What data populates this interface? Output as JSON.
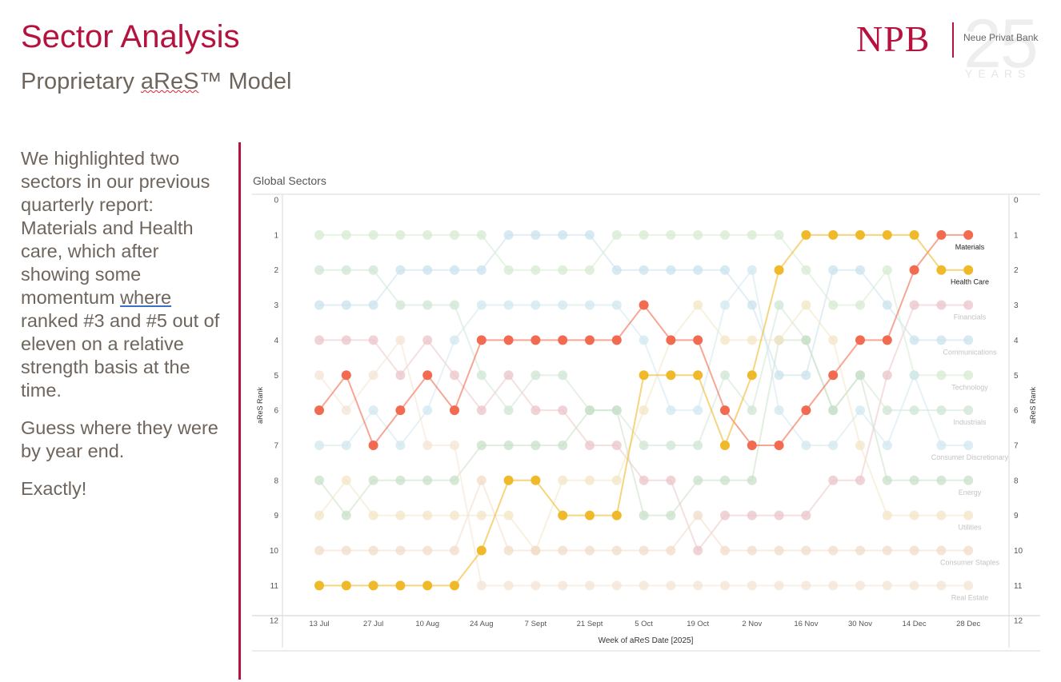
{
  "header": {
    "title": "Sector Analysis",
    "subtitle_pre": "Proprietary ",
    "subtitle_mark": "aReS",
    "subtitle_post": "™ Model"
  },
  "logo": {
    "brand": "NPB",
    "bank_name": "Neue Privat Bank",
    "anniversary": "25",
    "years_label": "YEARS",
    "color": "#b5123e"
  },
  "commentary": {
    "p1_part1": "We highlighted two sectors in our previous quarterly report: Materials and Health care, which after showing some momentum ",
    "p1_link": "where",
    "p1_part2": " ranked #3 and #5 out of eleven on a relative strength basis at the time.",
    "p2": "Guess where they were by year end.",
    "p3": "Exactly!"
  },
  "chart_data": {
    "type": "line",
    "title": "Global Sectors",
    "xlabel": "Week of aReS Date [2025]",
    "ylabel": "aReS Rank",
    "ylim": [
      0,
      12
    ],
    "y_ticks": [
      0,
      1,
      2,
      3,
      4,
      5,
      6,
      7,
      8,
      9,
      10,
      11,
      12
    ],
    "x_ticks": [
      "13 Jul",
      "27 Jul",
      "10 Aug",
      "24 Aug",
      "7 Sept",
      "21 Sept",
      "5 Oct",
      "19 Oct",
      "2 Nov",
      "16 Nov",
      "30 Nov",
      "14 Dec",
      "28 Dec"
    ],
    "weeks": 25,
    "series": [
      {
        "name": "Materials",
        "color": "#f26a4f",
        "highlight": true,
        "values": [
          6,
          5,
          7,
          6,
          5,
          6,
          4,
          4,
          4,
          4,
          4,
          4,
          3,
          4,
          4,
          6,
          7,
          7,
          6,
          5,
          4,
          4,
          2,
          1,
          1
        ]
      },
      {
        "name": "Health Care",
        "color": "#f0b92a",
        "highlight": true,
        "values": [
          11,
          11,
          11,
          11,
          11,
          11,
          10,
          8,
          8,
          9,
          9,
          9,
          5,
          5,
          5,
          7,
          5,
          2,
          1,
          1,
          1,
          1,
          1,
          2,
          2
        ]
      },
      {
        "name": "Financials",
        "color": "#ebc4c9",
        "highlight": false,
        "values": [
          4,
          4,
          4,
          5,
          4,
          5,
          6,
          5,
          6,
          6,
          7,
          7,
          8,
          8,
          10,
          9,
          9,
          9,
          9,
          8,
          8,
          5,
          3,
          3,
          3
        ]
      },
      {
        "name": "Communications",
        "color": "#c9e2ec",
        "highlight": false,
        "values": [
          3,
          3,
          3,
          2,
          2,
          2,
          2,
          1,
          1,
          1,
          1,
          2,
          2,
          2,
          2,
          2,
          3,
          5,
          5,
          2,
          2,
          3,
          4,
          4,
          4
        ]
      },
      {
        "name": "Technology",
        "color": "#d5ebd0",
        "highlight": false,
        "values": [
          1,
          1,
          1,
          1,
          1,
          1,
          1,
          2,
          2,
          2,
          2,
          1,
          1,
          1,
          1,
          1,
          1,
          1,
          2,
          3,
          3,
          2,
          5,
          5,
          5
        ]
      },
      {
        "name": "Industrials",
        "color": "#cfe6d4",
        "highlight": false,
        "values": [
          2,
          2,
          2,
          3,
          3,
          3,
          5,
          6,
          5,
          5,
          6,
          6,
          7,
          7,
          7,
          5,
          6,
          3,
          4,
          6,
          5,
          6,
          6,
          6,
          6
        ]
      },
      {
        "name": "Consumer Discretionary",
        "color": "#d0e8ef",
        "highlight": false,
        "values": [
          7,
          7,
          6,
          7,
          6,
          4,
          3,
          3,
          3,
          3,
          3,
          3,
          4,
          6,
          6,
          3,
          2,
          6,
          7,
          7,
          6,
          7,
          5,
          7,
          7
        ]
      },
      {
        "name": "Energy",
        "color": "#c8e0c8",
        "highlight": false,
        "values": [
          8,
          9,
          8,
          8,
          8,
          8,
          7,
          7,
          7,
          7,
          6,
          6,
          9,
          9,
          8,
          8,
          8,
          4,
          4,
          6,
          5,
          8,
          8,
          8,
          8
        ]
      },
      {
        "name": "Utilities",
        "color": "#f3e6c4",
        "highlight": false,
        "values": [
          9,
          8,
          9,
          9,
          9,
          9,
          9,
          9,
          10,
          8,
          8,
          8,
          6,
          4,
          3,
          4,
          4,
          4,
          3,
          4,
          7,
          9,
          9,
          9,
          9
        ]
      },
      {
        "name": "Consumer Staples",
        "color": "#f2dcc8",
        "highlight": false,
        "values": [
          10,
          10,
          10,
          10,
          10,
          10,
          8,
          10,
          10,
          10,
          10,
          10,
          10,
          10,
          9,
          10,
          10,
          10,
          10,
          10,
          10,
          10,
          10,
          10,
          10
        ]
      },
      {
        "name": "Real Estate",
        "color": "#f4e4d4",
        "highlight": false,
        "values": [
          5,
          6,
          5,
          4,
          7,
          7,
          11,
          11,
          11,
          11,
          11,
          11,
          11,
          11,
          11,
          11,
          11,
          11,
          11,
          11,
          11,
          11,
          11,
          11,
          11
        ]
      }
    ]
  }
}
